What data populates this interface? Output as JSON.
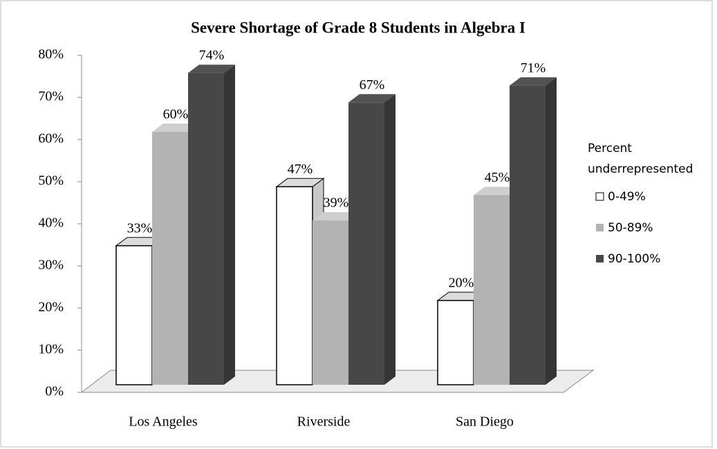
{
  "chart_data": {
    "type": "bar3d",
    "title": "Severe Shortage of Grade 8 Students in Algebra I",
    "categories": [
      "Los Angeles",
      "Riverside",
      "San Diego"
    ],
    "legend_title": "Percent underrepresented",
    "legend": "right",
    "grid": false,
    "series": [
      {
        "name": "0-49%",
        "color": "#ffffff",
        "values": [
          33,
          47,
          20
        ],
        "value_labels": [
          "33%",
          "47%",
          "20%"
        ]
      },
      {
        "name": "50-89%",
        "color": "#b3b3b3",
        "values": [
          60,
          39,
          45
        ],
        "value_labels": [
          "60%",
          "39%",
          "45%"
        ]
      },
      {
        "name": "90-100%",
        "color": "#474747",
        "values": [
          74,
          67,
          71
        ],
        "value_labels": [
          "74%",
          "67%",
          "71%"
        ]
      }
    ],
    "ylim": [
      0,
      80
    ],
    "yticks": [
      {
        "value": 0,
        "label": "0%"
      },
      {
        "value": 10,
        "label": "10%"
      },
      {
        "value": 20,
        "label": "20%"
      },
      {
        "value": 30,
        "label": "30%"
      },
      {
        "value": 40,
        "label": "40%"
      },
      {
        "value": 50,
        "label": "50%"
      },
      {
        "value": 60,
        "label": "60%"
      },
      {
        "value": 70,
        "label": "70%"
      },
      {
        "value": 80,
        "label": "80%"
      }
    ]
  }
}
